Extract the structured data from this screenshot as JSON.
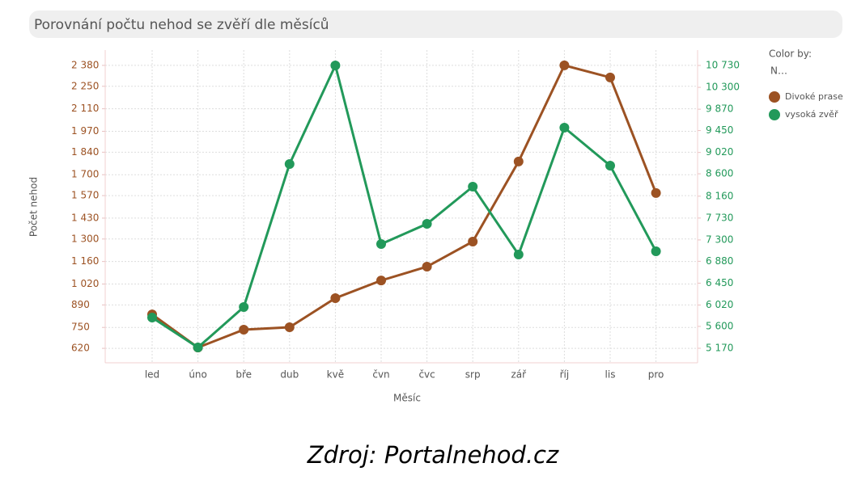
{
  "chart_data": {
    "type": "line",
    "title": "Porovnání počtu nehod se zvěří dle měsíců",
    "x_label": "Měsíc",
    "y_label": "Počet nehod",
    "legend_title": "Color by:",
    "legend_subtitle": "N…",
    "source": "Zdroj: Portalnehod.cz",
    "categories": [
      "led",
      "úno",
      "bře",
      "dub",
      "kvě",
      "čvn",
      "čvc",
      "srp",
      "zář",
      "říj",
      "lis",
      "pro"
    ],
    "series": [
      {
        "name": "Divoké prase",
        "color": "#9c5223",
        "axis": "y",
        "values": [
          831,
          625,
          736,
          751,
          932,
          1042,
          1128,
          1284,
          1782,
          2380,
          2305,
          1586
        ]
      },
      {
        "name": "vysoká zvěř",
        "color": "#22995a",
        "axis": "y2",
        "values": [
          5774,
          5186,
          5980,
          8792,
          10730,
          7219,
          7616,
          8347,
          7012,
          9507,
          8760,
          7076
        ]
      }
    ],
    "ylim": [
      530,
      2475
    ],
    "yticks": [
      620,
      750,
      890,
      {
        "value": 1020,
        "label": "1 020"
      },
      {
        "value": 1160,
        "label": "1 160"
      },
      {
        "value": 1300,
        "label": "1 300"
      },
      {
        "value": 1430,
        "label": "1 430"
      },
      {
        "value": 1570,
        "label": "1 570"
      },
      {
        "value": 1700,
        "label": "1 700"
      },
      {
        "value": 1840,
        "label": "1 840"
      },
      {
        "value": 1970,
        "label": "1 970"
      },
      {
        "value": 2110,
        "label": "2 110"
      },
      {
        "value": 2250,
        "label": "2 250"
      },
      {
        "value": 2380,
        "label": "2 380"
      }
    ],
    "y2lim": [
      4884,
      11032
    ],
    "y2ticks": [
      {
        "value": 5170,
        "label": "5 170"
      },
      {
        "value": 5600,
        "label": "5 600"
      },
      {
        "value": 6020,
        "label": "6 020"
      },
      {
        "value": 6450,
        "label": "6 450"
      },
      {
        "value": 6880,
        "label": "6 880"
      },
      {
        "value": 7300,
        "label": "7 300"
      },
      {
        "value": 7730,
        "label": "7 730"
      },
      {
        "value": 8160,
        "label": "8 160"
      },
      {
        "value": 8600,
        "label": "8 600"
      },
      {
        "value": 9020,
        "label": "9 020"
      },
      {
        "value": 9450,
        "label": "9 450"
      },
      {
        "value": 9870,
        "label": "9 870"
      },
      {
        "value": 10300,
        "label": "10 300"
      },
      {
        "value": 10730,
        "label": "10 730"
      }
    ],
    "grid": true
  }
}
